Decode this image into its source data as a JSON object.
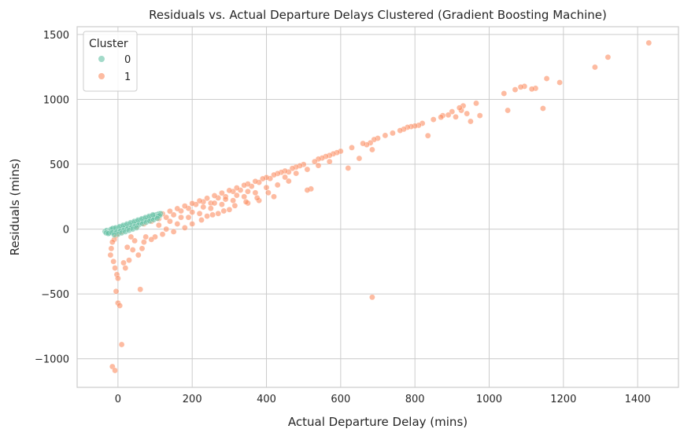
{
  "chart_data": {
    "type": "scatter",
    "title": "Residuals vs. Actual Departure Delays Clustered (Gradient Boosting Machine)",
    "xlabel": "Actual Departure Delay (mins)",
    "ylabel": "Residuals (mins)",
    "xlim": [
      -110,
      1510
    ],
    "ylim": [
      -1220,
      1560
    ],
    "xticks": [
      0,
      200,
      400,
      600,
      800,
      1000,
      1200,
      1400
    ],
    "yticks": [
      -1000,
      -500,
      0,
      500,
      1000,
      1500
    ],
    "xtick_labels": [
      "0",
      "200",
      "400",
      "600",
      "800",
      "1000",
      "1200",
      "1400"
    ],
    "ytick_labels": [
      "−1000",
      "−500",
      "0",
      "500",
      "1000",
      "1500"
    ],
    "grid": true,
    "legend": {
      "title": "Cluster",
      "placement": "top-left"
    },
    "series": [
      {
        "name": "0",
        "color": "#66c2a5",
        "points": [
          [
            -35,
            -18
          ],
          [
            -30,
            -10
          ],
          [
            -25,
            -22
          ],
          [
            -20,
            -5
          ],
          [
            -15,
            -12
          ],
          [
            -10,
            5
          ],
          [
            -5,
            -2
          ],
          [
            0,
            8
          ],
          [
            5,
            12
          ],
          [
            10,
            18
          ],
          [
            15,
            22
          ],
          [
            20,
            28
          ],
          [
            25,
            30
          ],
          [
            30,
            36
          ],
          [
            35,
            40
          ],
          [
            40,
            46
          ],
          [
            45,
            52
          ],
          [
            50,
            58
          ],
          [
            55,
            62
          ],
          [
            60,
            68
          ],
          [
            65,
            72
          ],
          [
            70,
            78
          ],
          [
            75,
            82
          ],
          [
            80,
            88
          ],
          [
            85,
            92
          ],
          [
            90,
            98
          ],
          [
            95,
            102
          ],
          [
            100,
            108
          ],
          [
            105,
            112
          ],
          [
            110,
            118
          ],
          [
            115,
            120
          ],
          [
            -28,
            -25
          ],
          [
            -22,
            -30
          ],
          [
            -12,
            -20
          ],
          [
            -8,
            -14
          ],
          [
            2,
            -6
          ],
          [
            8,
            -2
          ],
          [
            12,
            4
          ],
          [
            18,
            10
          ],
          [
            22,
            14
          ],
          [
            28,
            20
          ],
          [
            32,
            24
          ],
          [
            38,
            30
          ],
          [
            42,
            34
          ],
          [
            48,
            40
          ],
          [
            52,
            44
          ],
          [
            58,
            50
          ],
          [
            62,
            54
          ],
          [
            68,
            60
          ],
          [
            72,
            64
          ],
          [
            78,
            70
          ],
          [
            82,
            74
          ],
          [
            88,
            80
          ],
          [
            92,
            84
          ],
          [
            98,
            90
          ],
          [
            102,
            94
          ],
          [
            108,
            100
          ],
          [
            112,
            104
          ],
          [
            -18,
            0
          ],
          [
            -14,
            6
          ],
          [
            -6,
            10
          ],
          [
            4,
            20
          ],
          [
            14,
            30
          ],
          [
            24,
            40
          ],
          [
            34,
            50
          ],
          [
            44,
            60
          ],
          [
            54,
            70
          ],
          [
            64,
            80
          ],
          [
            74,
            90
          ],
          [
            84,
            100
          ],
          [
            94,
            110
          ],
          [
            -32,
            -30
          ],
          [
            -26,
            -35
          ],
          [
            -16,
            -28
          ],
          [
            -4,
            -24
          ],
          [
            6,
            -16
          ],
          [
            16,
            -8
          ],
          [
            26,
            2
          ],
          [
            36,
            12
          ],
          [
            46,
            22
          ],
          [
            56,
            32
          ],
          [
            66,
            42
          ],
          [
            76,
            52
          ],
          [
            86,
            62
          ],
          [
            96,
            72
          ],
          [
            106,
            82
          ],
          [
            0,
            -40
          ],
          [
            -10,
            -45
          ],
          [
            10,
            -30
          ],
          [
            20,
            -20
          ],
          [
            30,
            -10
          ],
          [
            40,
            0
          ],
          [
            50,
            10
          ]
        ]
      },
      {
        "name": "1",
        "color": "#fc8d62",
        "points": [
          [
            1430,
            1435
          ],
          [
            1320,
            1325
          ],
          [
            1285,
            1248
          ],
          [
            1190,
            1130
          ],
          [
            1155,
            1160
          ],
          [
            1145,
            930
          ],
          [
            1125,
            1085
          ],
          [
            1115,
            1080
          ],
          [
            1095,
            1100
          ],
          [
            1085,
            1095
          ],
          [
            1070,
            1075
          ],
          [
            1050,
            915
          ],
          [
            1040,
            1045
          ],
          [
            975,
            875
          ],
          [
            965,
            970
          ],
          [
            950,
            830
          ],
          [
            940,
            890
          ],
          [
            930,
            950
          ],
          [
            925,
            915
          ],
          [
            920,
            935
          ],
          [
            910,
            865
          ],
          [
            900,
            905
          ],
          [
            890,
            880
          ],
          [
            875,
            875
          ],
          [
            870,
            862
          ],
          [
            850,
            845
          ],
          [
            835,
            720
          ],
          [
            820,
            815
          ],
          [
            810,
            800
          ],
          [
            800,
            795
          ],
          [
            790,
            790
          ],
          [
            780,
            785
          ],
          [
            770,
            770
          ],
          [
            760,
            760
          ],
          [
            740,
            740
          ],
          [
            720,
            722
          ],
          [
            700,
            700
          ],
          [
            690,
            690
          ],
          [
            685,
            612
          ],
          [
            680,
            665
          ],
          [
            670,
            650
          ],
          [
            660,
            660
          ],
          [
            650,
            545
          ],
          [
            630,
            628
          ],
          [
            620,
            470
          ],
          [
            600,
            600
          ],
          [
            590,
            590
          ],
          [
            580,
            580
          ],
          [
            570,
            568
          ],
          [
            560,
            560
          ],
          [
            550,
            548
          ],
          [
            540,
            540
          ],
          [
            530,
            520
          ],
          [
            520,
            310
          ],
          [
            510,
            300
          ],
          [
            500,
            498
          ],
          [
            490,
            488
          ],
          [
            480,
            478
          ],
          [
            470,
            468
          ],
          [
            460,
            440
          ],
          [
            450,
            448
          ],
          [
            440,
            438
          ],
          [
            430,
            428
          ],
          [
            420,
            418
          ],
          [
            410,
            390
          ],
          [
            400,
            398
          ],
          [
            390,
            388
          ],
          [
            380,
            360
          ],
          [
            370,
            368
          ],
          [
            360,
            330
          ],
          [
            350,
            348
          ],
          [
            340,
            338
          ],
          [
            330,
            300
          ],
          [
            320,
            318
          ],
          [
            310,
            290
          ],
          [
            300,
            298
          ],
          [
            290,
            250
          ],
          [
            280,
            278
          ],
          [
            270,
            240
          ],
          [
            260,
            258
          ],
          [
            250,
            200
          ],
          [
            240,
            238
          ],
          [
            230,
            210
          ],
          [
            220,
            218
          ],
          [
            210,
            190
          ],
          [
            200,
            198
          ],
          [
            190,
            160
          ],
          [
            180,
            178
          ],
          [
            170,
            140
          ],
          [
            160,
            158
          ],
          [
            150,
            110
          ],
          [
            140,
            138
          ],
          [
            130,
            90
          ],
          [
            120,
            118
          ],
          [
            110,
            80
          ],
          [
            100,
            98
          ],
          [
            90,
            60
          ],
          [
            80,
            78
          ],
          [
            70,
            40
          ],
          [
            60,
            58
          ],
          [
            50,
            20
          ],
          [
            40,
            38
          ],
          [
            30,
            10
          ],
          [
            20,
            18
          ],
          [
            10,
            -20
          ],
          [
            0,
            -30
          ],
          [
            -5,
            -50
          ],
          [
            -10,
            -80
          ],
          [
            -15,
            -100
          ],
          [
            -18,
            -150
          ],
          [
            -20,
            -200
          ],
          [
            -12,
            -250
          ],
          [
            -8,
            -300
          ],
          [
            -3,
            -350
          ],
          [
            0,
            -380
          ],
          [
            -5,
            -480
          ],
          [
            0,
            -570
          ],
          [
            5,
            -590
          ],
          [
            10,
            -890
          ],
          [
            -15,
            -1060
          ],
          [
            -8,
            -1090
          ],
          [
            60,
            -465
          ],
          [
            685,
            -525
          ],
          [
            30,
            -240
          ],
          [
            40,
            -160
          ],
          [
            55,
            -200
          ],
          [
            20,
            -300
          ],
          [
            15,
            -260
          ],
          [
            70,
            -100
          ],
          [
            100,
            -60
          ],
          [
            130,
            0
          ],
          [
            160,
            40
          ],
          [
            190,
            90
          ],
          [
            220,
            120
          ],
          [
            250,
            160
          ],
          [
            280,
            190
          ],
          [
            310,
            220
          ],
          [
            340,
            250
          ],
          [
            370,
            280
          ],
          [
            400,
            320
          ],
          [
            430,
            340
          ],
          [
            460,
            370
          ],
          [
            380,
            220
          ],
          [
            420,
            250
          ],
          [
            350,
            200
          ],
          [
            300,
            150
          ],
          [
            270,
            120
          ],
          [
            240,
            100
          ],
          [
            200,
            40
          ],
          [
            180,
            10
          ],
          [
            150,
            -20
          ],
          [
            120,
            -40
          ],
          [
            90,
            -80
          ],
          [
            75,
            -60
          ],
          [
            65,
            -150
          ],
          [
            45,
            -90
          ],
          [
            25,
            -140
          ],
          [
            35,
            -60
          ],
          [
            110,
            30
          ],
          [
            140,
            60
          ],
          [
            170,
            90
          ],
          [
            200,
            130
          ],
          [
            230,
            170
          ],
          [
            260,
            200
          ],
          [
            290,
            230
          ],
          [
            320,
            260
          ],
          [
            350,
            290
          ],
          [
            450,
            400
          ],
          [
            480,
            430
          ],
          [
            510,
            460
          ],
          [
            540,
            490
          ],
          [
            570,
            520
          ],
          [
            225,
            70
          ],
          [
            255,
            110
          ],
          [
            285,
            140
          ],
          [
            315,
            180
          ],
          [
            345,
            210
          ],
          [
            375,
            240
          ],
          [
            405,
            280
          ]
        ]
      }
    ]
  }
}
